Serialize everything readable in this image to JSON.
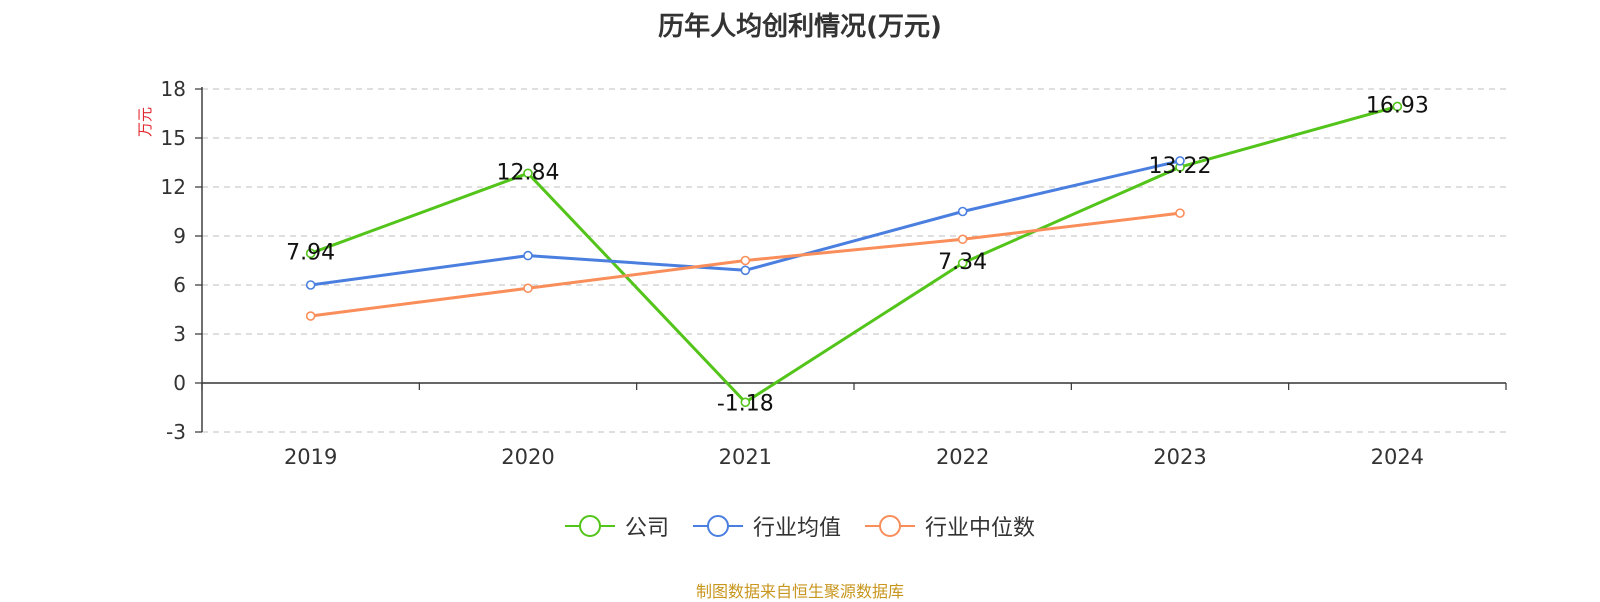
{
  "chart_data": {
    "type": "line",
    "title": "历年人均创利情况(万元)",
    "ylabel": "万元",
    "categories": [
      "2019",
      "2020",
      "2021",
      "2022",
      "2023",
      "2024"
    ],
    "ylim": [
      -3,
      18
    ],
    "yticks": [
      -3,
      0,
      3,
      6,
      9,
      12,
      15,
      18
    ],
    "grid": true,
    "legend_position": "bottom",
    "series": [
      {
        "name": "公司",
        "color": "#52c41a",
        "values": [
          7.94,
          12.84,
          -1.18,
          7.34,
          13.22,
          16.93
        ],
        "show_labels": true
      },
      {
        "name": "行业均值",
        "color": "#4a7fe0",
        "values": [
          6.0,
          7.8,
          6.9,
          10.5,
          13.6,
          null
        ],
        "show_labels": false
      },
      {
        "name": "行业中位数",
        "color": "#f98e5a",
        "values": [
          4.1,
          5.8,
          7.5,
          8.8,
          10.4,
          null
        ],
        "show_labels": false
      }
    ],
    "ylabel_color": "#e0282e"
  },
  "source": {
    "text": "制图数据来自恒生聚源数据库",
    "color": "#c8961e"
  }
}
